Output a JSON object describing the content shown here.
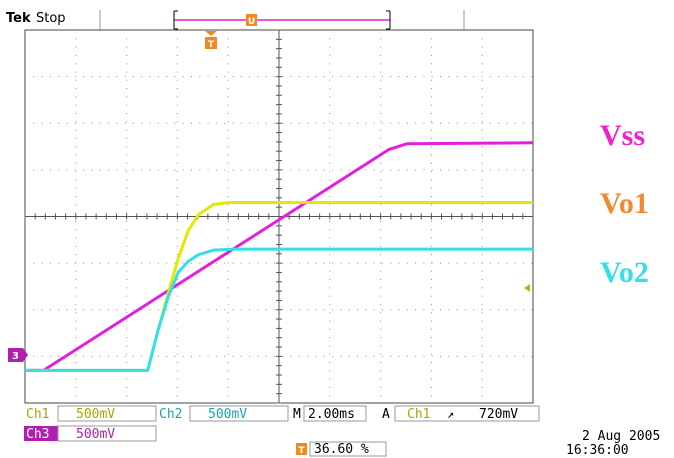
{
  "header": {
    "brand": "Tek",
    "state": "Stop",
    "trigger_marker_label": "T",
    "ref_marker_label": "U"
  },
  "readout": {
    "ch1_label": "Ch1",
    "ch1_scale": "500mV",
    "ch2_label": "Ch2",
    "ch2_scale": "500mV",
    "ch3_label": "Ch3",
    "ch3_scale": "500mV",
    "timebase_prefix": "M",
    "timebase": "2.00ms",
    "trigger_mode": "A",
    "trigger_source": "Ch1",
    "trigger_slope": "↗",
    "trigger_level": "720mV",
    "trigger_position_icon": "T",
    "trigger_position": "36.60 %",
    "date": "2 Aug 2005",
    "time": "16:36:00",
    "ch3_ground_marker": "3"
  },
  "colors": {
    "ch1_yellow": "#e6e600",
    "ch2_cyan": "#33e0e6",
    "ch3_magenta": "#e020e0",
    "trigger_orange": "#f08a20",
    "grid": "#8c8c8c"
  },
  "chart_data": {
    "type": "line",
    "title": "",
    "xlabel": "",
    "ylabel": "",
    "x_unit": "ms",
    "x_divisions": 10,
    "y_divisions": 8,
    "xlim": [
      -4.23,
      15.77
    ],
    "series": [
      {
        "name": "Vss",
        "channel": "Ch3",
        "color": "#e020e0",
        "x": [
          -4.23,
          -3.5,
          10.1,
          10.8,
          15.77
        ],
        "y": [
          0.0,
          0.0,
          2.37,
          2.43,
          2.44
        ]
      },
      {
        "name": "Vo1",
        "channel": "Ch1",
        "color": "#e6e600",
        "x": [
          -4.23,
          0.6,
          1.0,
          1.4,
          1.8,
          2.2,
          2.6,
          3.2,
          3.8,
          15.77
        ],
        "y": [
          0.0,
          0.0,
          0.42,
          0.82,
          1.2,
          1.5,
          1.67,
          1.78,
          1.8,
          1.8
        ]
      },
      {
        "name": "Vo2",
        "channel": "Ch2",
        "color": "#33e0e6",
        "x": [
          -4.23,
          0.6,
          1.0,
          1.4,
          1.8,
          2.2,
          2.6,
          3.2,
          4.0,
          15.77
        ],
        "y": [
          0.0,
          0.0,
          0.42,
          0.78,
          1.05,
          1.17,
          1.24,
          1.29,
          1.3,
          1.3
        ]
      }
    ],
    "grid": true
  }
}
